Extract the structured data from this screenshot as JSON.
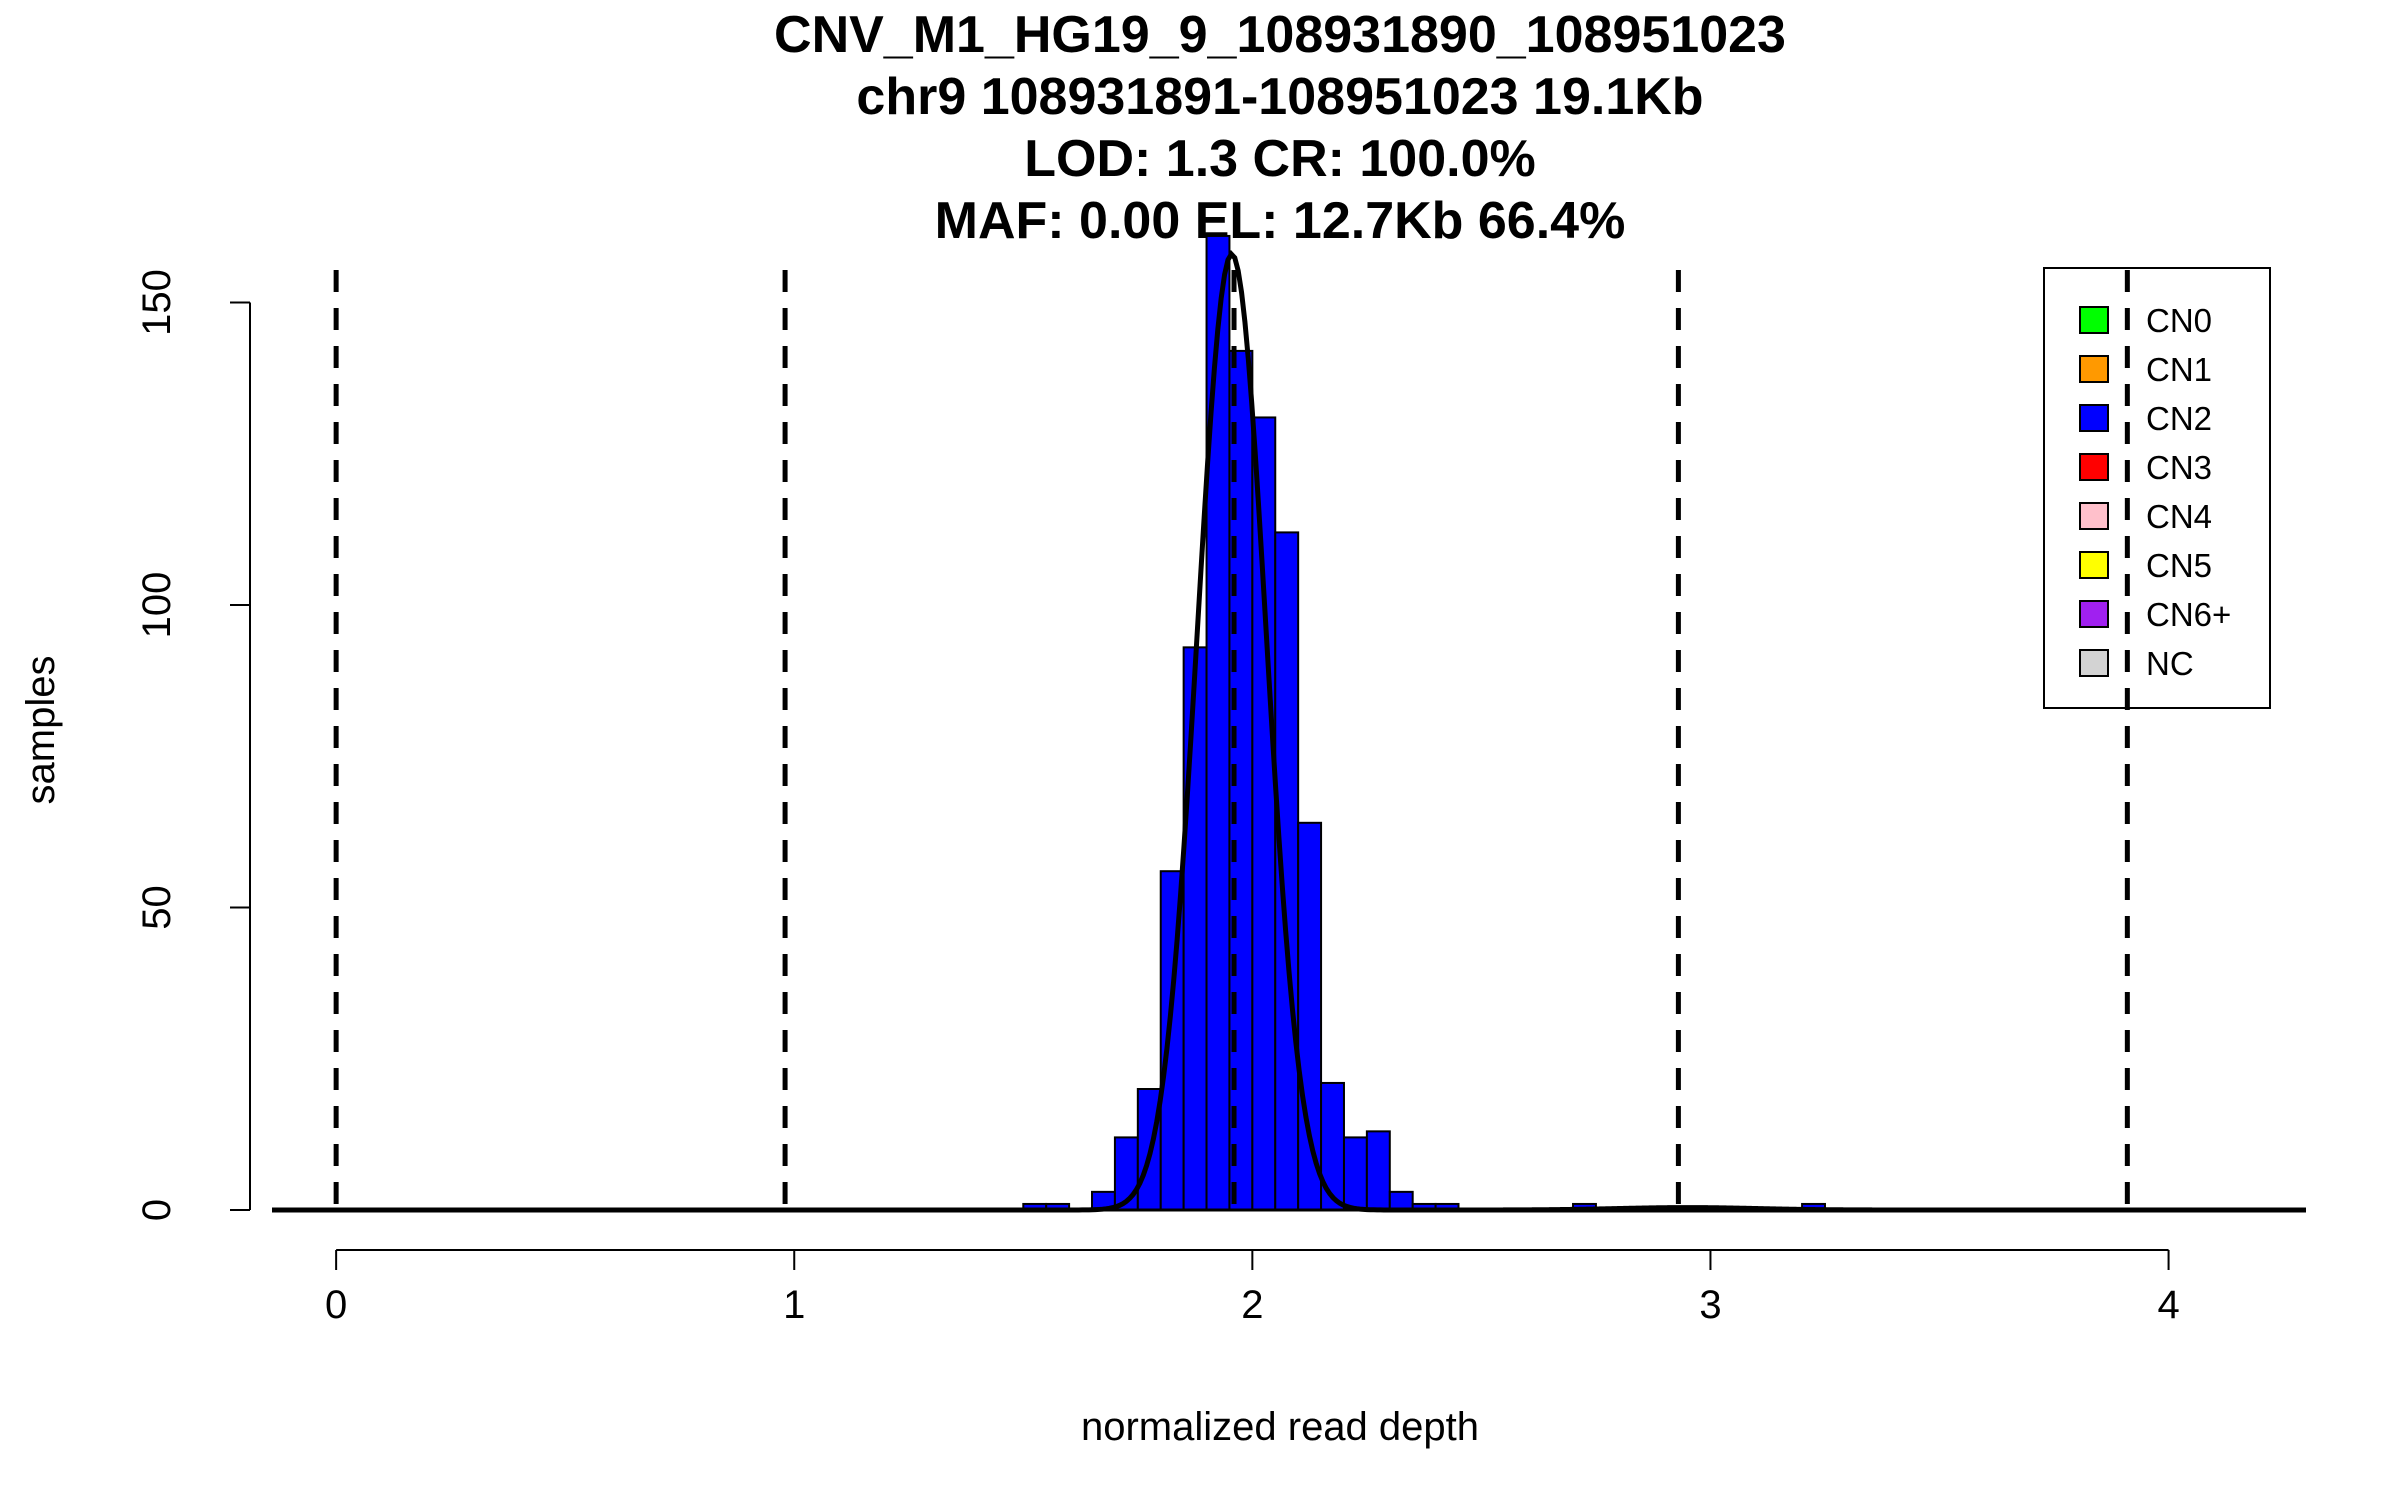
{
  "chart_data": {
    "type": "bar",
    "title_lines": [
      "CNV_M1_HG19_9_108931890_108951023",
      "chr9 108931891-108951023 19.1Kb",
      "LOD: 1.3 CR: 100.0%",
      "MAF: 0.00 EL: 12.7Kb 66.4%"
    ],
    "xlabel": "normalized read depth",
    "ylabel": "samples",
    "xlim": [
      -0.14,
      4.3
    ],
    "ylim": [
      0,
      160
    ],
    "x_ticks": [
      0,
      1,
      2,
      3,
      4
    ],
    "x_tick_labels": [
      "0",
      "1",
      "2",
      "3",
      "4"
    ],
    "y_ticks": [
      0,
      50,
      100,
      150
    ],
    "y_tick_labels": [
      "0",
      "50",
      "100",
      "150"
    ],
    "bin_width": 0.05,
    "bins": [
      {
        "x0": 1.5,
        "count": 1
      },
      {
        "x0": 1.55,
        "count": 1
      },
      {
        "x0": 1.65,
        "count": 3
      },
      {
        "x0": 1.7,
        "count": 12
      },
      {
        "x0": 1.75,
        "count": 20
      },
      {
        "x0": 1.8,
        "count": 56
      },
      {
        "x0": 1.85,
        "count": 93
      },
      {
        "x0": 1.9,
        "count": 161
      },
      {
        "x0": 1.95,
        "count": 142
      },
      {
        "x0": 2.0,
        "count": 131
      },
      {
        "x0": 2.05,
        "count": 112
      },
      {
        "x0": 2.1,
        "count": 64
      },
      {
        "x0": 2.15,
        "count": 21
      },
      {
        "x0": 2.2,
        "count": 12
      },
      {
        "x0": 2.25,
        "count": 13
      },
      {
        "x0": 2.3,
        "count": 3
      },
      {
        "x0": 2.35,
        "count": 1
      },
      {
        "x0": 2.4,
        "count": 1
      },
      {
        "x0": 2.7,
        "count": 1
      },
      {
        "x0": 3.2,
        "count": 1
      }
    ],
    "bar_color": "#0000ff",
    "dashed_lines_x": [
      0.0,
      0.98,
      1.96,
      2.93,
      3.91
    ],
    "fit_curves": [
      {
        "mean": 1.955,
        "sd": 0.075,
        "peak": 158,
        "x_from": -0.14,
        "x_to": 4.3
      },
      {
        "mean": 2.95,
        "sd": 0.15,
        "peak": 0.4,
        "x_from": 2.5,
        "x_to": 3.4
      }
    ],
    "legend": {
      "placement": "top-right",
      "entries": [
        {
          "label": "CN0",
          "color": "#00ff00"
        },
        {
          "label": "CN1",
          "color": "#ff9900"
        },
        {
          "label": "CN2",
          "color": "#0000ff"
        },
        {
          "label": "CN3",
          "color": "#ff0000"
        },
        {
          "label": "CN4",
          "color": "#ffc0cb"
        },
        {
          "label": "CN5",
          "color": "#ffff00"
        },
        {
          "label": "CN6+",
          "color": "#a020f0"
        },
        {
          "label": "NC",
          "color": "#d3d3d3"
        }
      ]
    }
  }
}
